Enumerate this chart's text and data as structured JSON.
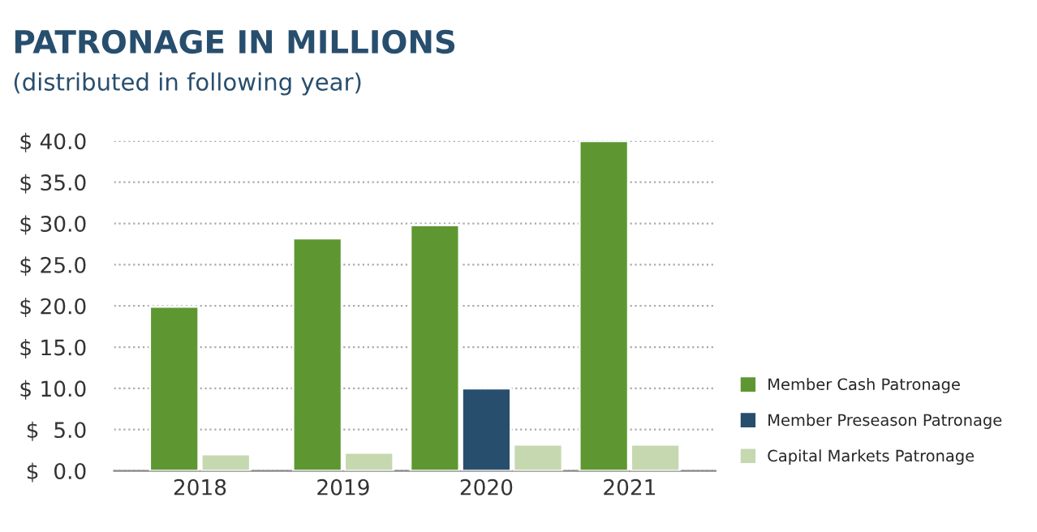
{
  "chart_data": {
    "type": "bar",
    "title": "PATRONAGE IN MILLIONS",
    "subtitle": "(distributed in following year)",
    "categories": [
      "2018",
      "2019",
      "2020",
      "2021"
    ],
    "series": [
      {
        "name": "Member Cash Patronage",
        "color": "#5e9732",
        "values": [
          19.9,
          28.2,
          29.8,
          40.0
        ]
      },
      {
        "name": "Member Preseason Patronage",
        "color": "#284e6e",
        "values": [
          null,
          null,
          10.0,
          null
        ]
      },
      {
        "name": "Capital Markets Patronage",
        "color": "#c5d8b0",
        "values": [
          2.0,
          2.2,
          3.2,
          3.2
        ]
      }
    ],
    "ylim": [
      0,
      40
    ],
    "yticks": [
      {
        "value": 0,
        "label": "$  0.0"
      },
      {
        "value": 5,
        "label": "$  5.0"
      },
      {
        "value": 10,
        "label": "$ 10.0"
      },
      {
        "value": 15,
        "label": "$ 15.0"
      },
      {
        "value": 20,
        "label": "$ 20.0"
      },
      {
        "value": 25,
        "label": "$ 25.0"
      },
      {
        "value": 30,
        "label": "$ 30.0"
      },
      {
        "value": 35,
        "label": "$ 35.0"
      },
      {
        "value": 40,
        "label": "$ 40.0"
      }
    ],
    "grid": "y",
    "legend": "right"
  }
}
